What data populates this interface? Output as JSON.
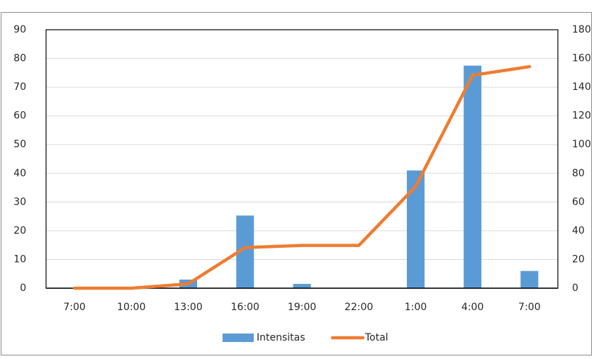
{
  "chart_data": {
    "type": "bar+line",
    "categories": [
      "7:00",
      "10:00",
      "13:00",
      "16:00",
      "19:00",
      "22:00",
      "1:00",
      "4:00",
      "7:00"
    ],
    "series": [
      {
        "name": "Intensitas",
        "type": "bar",
        "axis": "left",
        "color": "#5B9BD5",
        "values": [
          0,
          0,
          3,
          25.3,
          1.5,
          0,
          41,
          77.5,
          6
        ]
      },
      {
        "name": "Total",
        "type": "line",
        "axis": "right",
        "color": "#ED7D31",
        "values": [
          0,
          0,
          3,
          28.3,
          29.8,
          29.8,
          70.8,
          148.3,
          154.3
        ]
      }
    ],
    "y_left": {
      "min": 0,
      "max": 90,
      "ticks": [
        "0",
        "10",
        "20",
        "30",
        "40",
        "50",
        "60",
        "70",
        "80",
        "90"
      ]
    },
    "y_right": {
      "min": 0,
      "max": 180,
      "ticks": [
        "0",
        "20",
        "40",
        "60",
        "80",
        "100",
        "120",
        "140",
        "160",
        "180"
      ]
    },
    "grid": true,
    "legend_position": "bottom",
    "legend": [
      {
        "label": "Intensitas",
        "symbol": "bar",
        "color": "#5B9BD5"
      },
      {
        "label": "Total",
        "symbol": "line",
        "color": "#ED7D31"
      }
    ]
  }
}
